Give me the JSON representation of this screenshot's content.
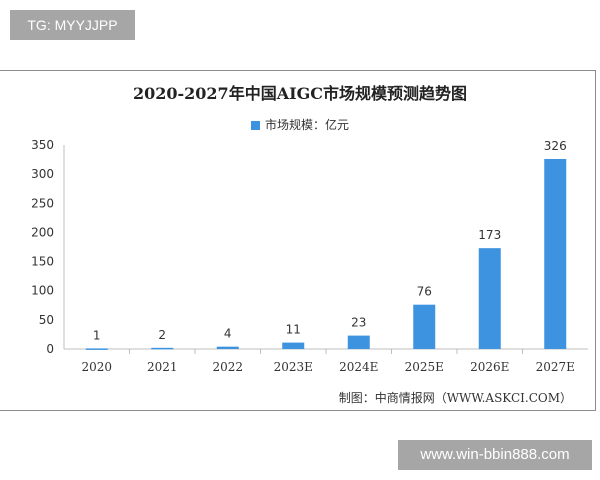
{
  "tag": "TG: MYYJJPP",
  "site": "www.win-bbin888.com",
  "chart_data": {
    "type": "bar",
    "title": "2020-2027年中国AIGC市场规模预测趋势图",
    "legend": "市场规模：亿元",
    "legend_position": "top-center",
    "categories": [
      "2020",
      "2021",
      "2022",
      "2023E",
      "2024E",
      "2025E",
      "2026E",
      "2027E"
    ],
    "values": [
      1,
      2,
      4,
      11,
      23,
      76,
      173,
      326
    ],
    "yticks": [
      0,
      50,
      100,
      150,
      200,
      250,
      300,
      350
    ],
    "ylim": [
      0,
      350
    ],
    "xlabel": "",
    "ylabel": "",
    "grid": false,
    "color": "#3d93e0",
    "credit": "制图：中商情报网（WWW.ASKCI.COM）"
  }
}
